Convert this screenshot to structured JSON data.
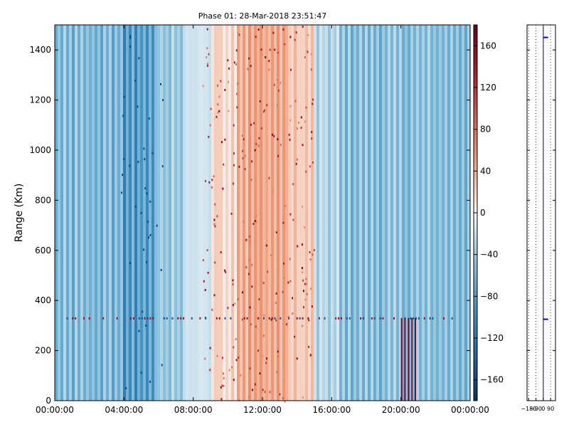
{
  "chart_data": [
    {
      "type": "heatmap",
      "title": "Phase 01: 28-Mar-2018 23:51:47",
      "ylabel": "Range (Km)",
      "xlabel": "",
      "x_tick_labels": [
        "00:00:00",
        "04:00:00",
        "08:00:00",
        "12:00:00",
        "16:00:00",
        "20:00:00",
        "00:00:00"
      ],
      "x_range_hours": [
        0,
        24
      ],
      "y_ticks": [
        0,
        200,
        400,
        600,
        800,
        1000,
        1200,
        1400
      ],
      "ylim": [
        0,
        1500
      ],
      "value_range": [
        -180,
        180
      ],
      "colormap": "RdBu_r",
      "colors": {
        "low": "#053061",
        "mid": "#f7f7f7",
        "high": "#67001f",
        "profile_line": "#0000cc"
      },
      "bands": [
        {
          "from_hour": 0.0,
          "to_hour": 4.0,
          "phase": -72
        },
        {
          "from_hour": 4.0,
          "to_hour": 5.0,
          "phase": -110
        },
        {
          "from_hour": 5.0,
          "to_hour": 6.0,
          "phase": -95
        },
        {
          "from_hour": 6.0,
          "to_hour": 7.5,
          "phase": -55
        },
        {
          "from_hour": 7.5,
          "to_hour": 9.0,
          "phase": -20
        },
        {
          "from_hour": 9.0,
          "to_hour": 10.5,
          "phase": 25
        },
        {
          "from_hour": 10.5,
          "to_hour": 13.5,
          "phase": 55
        },
        {
          "from_hour": 13.5,
          "to_hour": 15.0,
          "phase": 30
        },
        {
          "from_hour": 15.0,
          "to_hour": 16.5,
          "phase": -40
        },
        {
          "from_hour": 16.5,
          "to_hour": 24.0,
          "phase": -65
        }
      ],
      "features": [
        {
          "kind": "speckle_row",
          "range_km": 330,
          "from_hour": 0.2,
          "to_hour": 23.5
        },
        {
          "kind": "red_block",
          "from_hour": 20.0,
          "to_hour": 21.0,
          "from_km": 0,
          "to_km": 330,
          "phase": 170
        }
      ]
    },
    {
      "type": "colorbar",
      "ticks": [
        160,
        120,
        80,
        40,
        0,
        -40,
        -80,
        -120,
        -160
      ],
      "range": [
        -180,
        180
      ]
    },
    {
      "type": "line",
      "x_tick_labels": [
        "-180",
        "-90",
        "0",
        "90"
      ],
      "xlim": [
        -200,
        150
      ],
      "ylim": [
        0,
        1500
      ],
      "marker_rows": [
        {
          "range_km": 1450,
          "from_phase": 0,
          "to_phase": 60
        },
        {
          "range_km": 325,
          "from_phase": 0,
          "to_phase": 60
        }
      ]
    }
  ]
}
